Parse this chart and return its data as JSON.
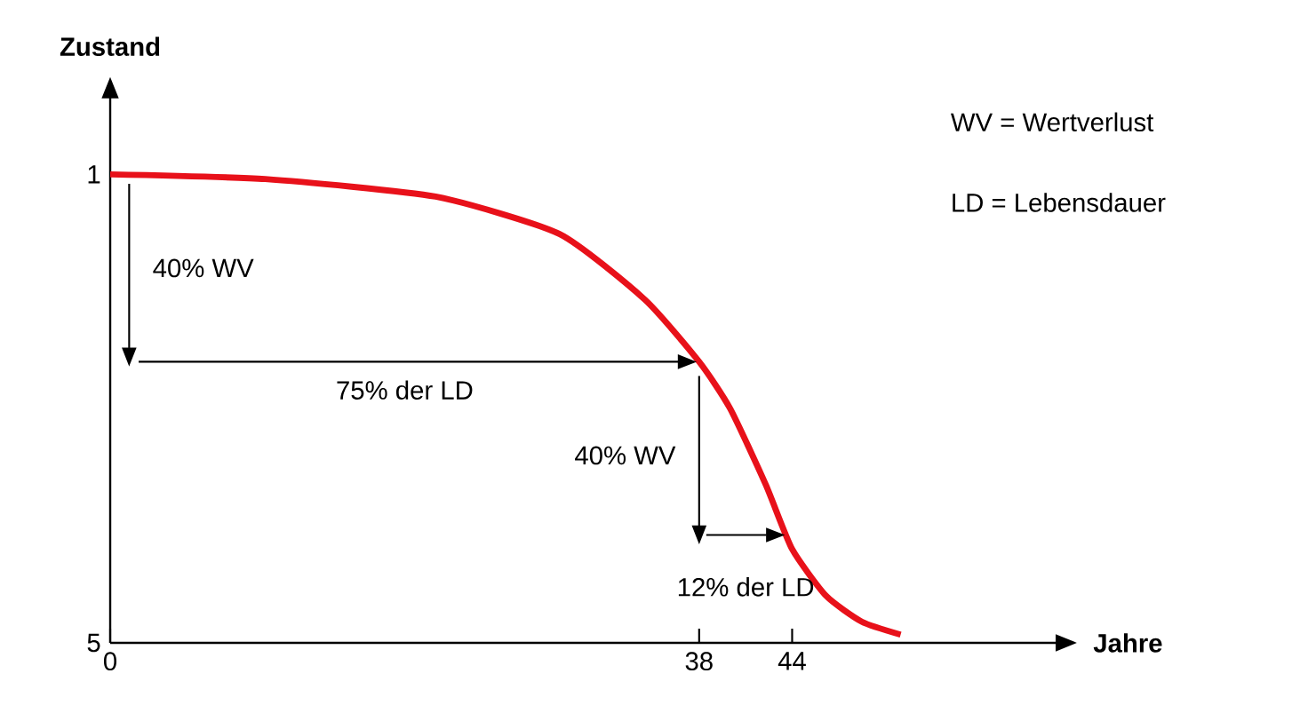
{
  "chart_data": {
    "type": "line",
    "xlabel": "Jahre",
    "ylabel": "Zustand",
    "xlim": [
      0,
      61
    ],
    "ylim": [
      5,
      0.35
    ],
    "xticks": [
      0,
      38,
      44
    ],
    "yticks": [
      1,
      5
    ],
    "series": [
      {
        "color": "#e8111a",
        "x": [
          0,
          10,
          21,
          29,
          34.5,
          38,
          40,
          42.3,
          44,
          46.2,
          48.5,
          51
        ],
        "values": [
          1,
          1.04,
          1.19,
          1.51,
          2.07,
          2.6,
          3.0,
          3.65,
          4.2,
          4.6,
          4.82,
          4.93
        ]
      }
    ],
    "annotations": [
      "40% WV",
      "75% der LD",
      "40% WV",
      "12% der LD",
      "WV = Wertverlust",
      "LD = Lebensdauer"
    ]
  }
}
